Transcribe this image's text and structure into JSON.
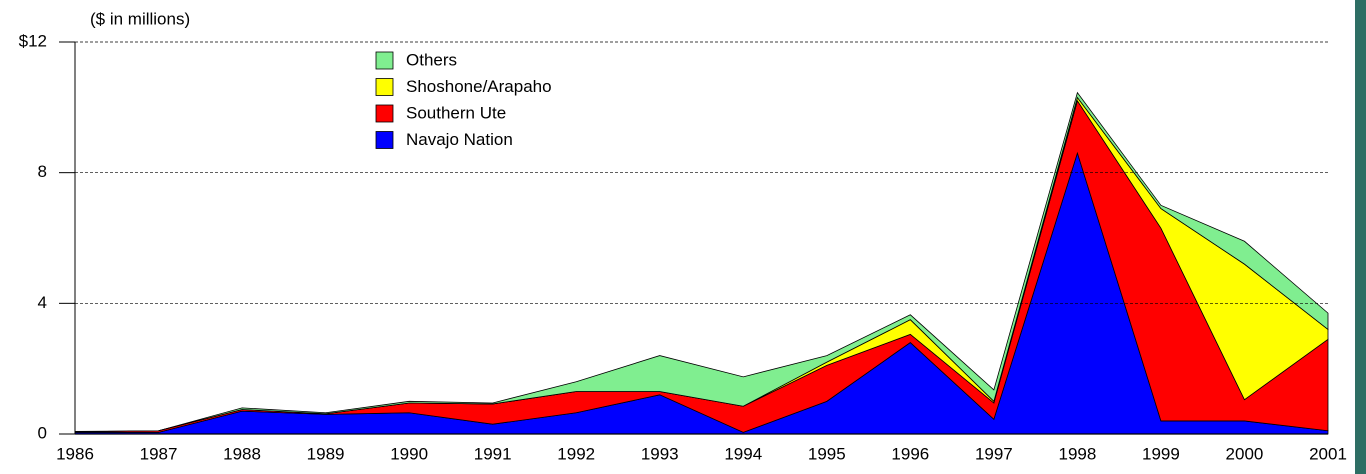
{
  "chart_data": {
    "type": "area",
    "stacked": true,
    "y_label": "($ in millions)",
    "categories": [
      "1986",
      "1987",
      "1988",
      "1989",
      "1990",
      "1991",
      "1992",
      "1993",
      "1994",
      "1995",
      "1996",
      "1997",
      "1998",
      "1999",
      "2000",
      "2001"
    ],
    "series": [
      {
        "name": "Navajo Nation",
        "color": "#0000ff",
        "values": [
          0.05,
          0.05,
          0.7,
          0.6,
          0.65,
          0.3,
          0.65,
          1.2,
          0.05,
          1.0,
          2.8,
          0.45,
          8.6,
          0.4,
          0.4,
          0.1
        ]
      },
      {
        "name": "Southern Ute",
        "color": "#ff0000",
        "values": [
          0.02,
          0.05,
          0.05,
          0.02,
          0.3,
          0.62,
          0.65,
          0.1,
          0.8,
          1.1,
          0.25,
          0.5,
          1.6,
          5.9,
          0.65,
          2.8
        ]
      },
      {
        "name": "Shoshone/Arapaho",
        "color": "#ffff00",
        "values": [
          0,
          0,
          0,
          0,
          0,
          0,
          0,
          0,
          0,
          0.1,
          0.45,
          0.05,
          0.1,
          0.6,
          4.15,
          0.3
        ]
      },
      {
        "name": "Others",
        "color": "#80ee90",
        "values": [
          0.01,
          0,
          0.05,
          0.03,
          0.05,
          0.03,
          0.3,
          1.1,
          0.9,
          0.2,
          0.15,
          0.35,
          0.15,
          0.1,
          0.7,
          0.5
        ]
      }
    ],
    "ylim": [
      0,
      12
    ],
    "yticks": [
      0,
      4,
      8,
      {
        "value": 12,
        "label": "$12"
      }
    ],
    "grid": true
  }
}
